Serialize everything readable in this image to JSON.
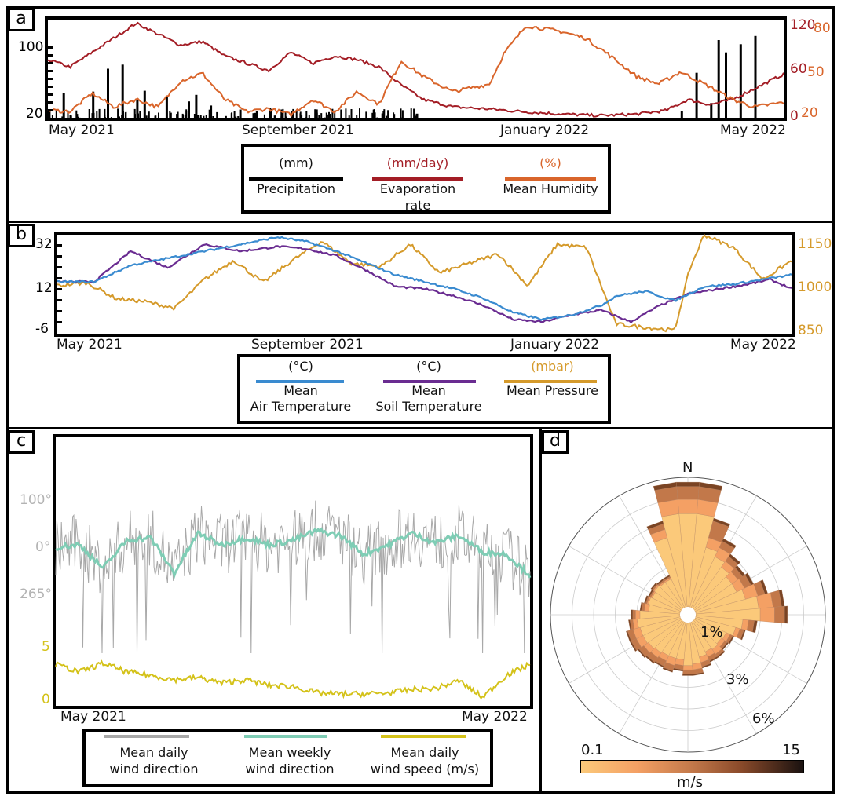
{
  "chart_data": [
    {
      "panel": "a",
      "type": "line",
      "x_ticks": [
        "May 2021",
        "September 2021",
        "January 2022",
        "May 2022"
      ],
      "axes": {
        "left": {
          "ticks": [
            "100",
            "20"
          ],
          "unit": "(mm)",
          "color": "#000000"
        },
        "right_inner": {
          "ticks": [
            "120",
            "60",
            "0"
          ],
          "unit": "(mm/day)",
          "color": "#a31d25"
        },
        "right_outer": {
          "ticks": [
            "80",
            "50",
            "20"
          ],
          "unit": "(%)",
          "color": "#d9652b"
        }
      },
      "series": [
        {
          "name": "Precipitation",
          "unit": "(mm)",
          "color": "#000000",
          "kind": "bar",
          "x": [
            0.02,
            0.06,
            0.08,
            0.1,
            0.12,
            0.13,
            0.16,
            0.19,
            0.2,
            0.22,
            0.26,
            0.3,
            0.33,
            0.44,
            0.5,
            0.86,
            0.88,
            0.9,
            0.91,
            0.92,
            0.94,
            0.96
          ],
          "values": [
            30,
            32,
            60,
            65,
            22,
            33,
            25,
            20,
            28,
            15,
            10,
            12,
            8,
            6,
            5,
            8,
            55,
            18,
            95,
            80,
            90,
            100
          ]
        },
        {
          "name": "Evaporation rate",
          "unit": "(mm/day)",
          "color": "#a31d25",
          "kind": "line",
          "x": [
            0,
            0.03,
            0.06,
            0.09,
            0.12,
            0.15,
            0.18,
            0.21,
            0.24,
            0.27,
            0.3,
            0.33,
            0.36,
            0.39,
            0.42,
            0.45,
            0.48,
            0.51,
            0.55,
            0.6,
            0.65,
            0.7,
            0.75,
            0.8,
            0.84,
            0.87,
            0.9,
            0.93,
            0.96,
            1.0
          ],
          "values": [
            80,
            70,
            90,
            110,
            130,
            115,
            100,
            105,
            85,
            75,
            65,
            90,
            75,
            85,
            80,
            70,
            45,
            25,
            15,
            12,
            8,
            5,
            3,
            5,
            10,
            25,
            18,
            25,
            40,
            60
          ]
        },
        {
          "name": "Mean Humidity",
          "unit": "(%)",
          "color": "#d9652b",
          "kind": "line",
          "x": [
            0,
            0.03,
            0.06,
            0.09,
            0.12,
            0.15,
            0.18,
            0.21,
            0.24,
            0.27,
            0.3,
            0.33,
            0.36,
            0.39,
            0.42,
            0.45,
            0.48,
            0.51,
            0.55,
            0.6,
            0.62,
            0.65,
            0.7,
            0.73,
            0.76,
            0.8,
            0.83,
            0.86,
            0.9,
            0.93,
            0.96,
            1.0
          ],
          "values": [
            23,
            22,
            34,
            25,
            30,
            25,
            42,
            47,
            30,
            22,
            24,
            20,
            30,
            22,
            35,
            27,
            55,
            45,
            35,
            40,
            60,
            78,
            74,
            70,
            60,
            45,
            40,
            48,
            38,
            30,
            25,
            28
          ]
        }
      ],
      "legend_placement": "bottom"
    },
    {
      "panel": "b",
      "type": "line",
      "x_ticks": [
        "May 2021",
        "September 2021",
        "January 2022",
        "May 2022"
      ],
      "axes": {
        "left": {
          "ticks": [
            "32",
            "12",
            "-6"
          ],
          "unit": "(°C)",
          "ylim": [
            -6,
            32
          ]
        },
        "right": {
          "ticks": [
            "1150",
            "1000",
            "850"
          ],
          "unit": "(mbar)",
          "color": "#d59a2b",
          "ylim": [
            850,
            1150
          ]
        }
      },
      "series": [
        {
          "name": "Mean Air Temperature",
          "unit": "(°C)",
          "color": "#3a8bd0",
          "x": [
            0,
            0.05,
            0.1,
            0.15,
            0.2,
            0.25,
            0.3,
            0.34,
            0.38,
            0.42,
            0.46,
            0.5,
            0.54,
            0.58,
            0.62,
            0.66,
            0.7,
            0.74,
            0.76,
            0.8,
            0.84,
            0.88,
            0.92,
            0.96,
            1.0
          ],
          "values": [
            14,
            14,
            21,
            24,
            27,
            30,
            33,
            31,
            27,
            22,
            17,
            14,
            11,
            7,
            1,
            -2,
            0,
            4,
            8,
            10,
            6,
            12,
            13,
            15,
            17
          ]
        },
        {
          "name": "Mean Soil Temperature",
          "unit": "(°C)",
          "color": "#6a2c91",
          "x": [
            0,
            0.05,
            0.1,
            0.15,
            0.2,
            0.25,
            0.3,
            0.34,
            0.38,
            0.42,
            0.46,
            0.5,
            0.54,
            0.58,
            0.62,
            0.66,
            0.7,
            0.74,
            0.78,
            0.82,
            0.86,
            0.9,
            0.94,
            0.97,
            1.0
          ],
          "values": [
            14,
            14,
            27,
            20,
            30,
            27,
            29,
            28,
            25,
            19,
            12,
            11,
            8,
            4,
            -2,
            -3,
            0,
            2,
            -3,
            4,
            9,
            11,
            13,
            15,
            11
          ]
        },
        {
          "name": "Mean Pressure",
          "unit": "(mbar)",
          "color": "#d59a2b",
          "x": [
            0,
            0.04,
            0.08,
            0.12,
            0.16,
            0.2,
            0.24,
            0.28,
            0.32,
            0.36,
            0.4,
            0.44,
            0.48,
            0.52,
            0.56,
            0.6,
            0.64,
            0.68,
            0.72,
            0.76,
            0.8,
            0.84,
            0.86,
            0.88,
            0.92,
            0.96,
            1.0
          ],
          "values": [
            1000,
            1010,
            960,
            950,
            930,
            1020,
            1080,
            1010,
            1080,
            1140,
            1070,
            1060,
            1130,
            1040,
            1070,
            1100,
            1000,
            1130,
            1120,
            880,
            870,
            860,
            1050,
            1160,
            1120,
            1020,
            1080
          ]
        }
      ],
      "legend_placement": "bottom"
    },
    {
      "panel": "c",
      "type": "line",
      "x_ticks": [
        "May 2021",
        "May 2022"
      ],
      "axes": {
        "left_direction": {
          "ticks": [
            "100°",
            "0°",
            "265°"
          ],
          "color": "#b3b3b3"
        },
        "left_speed": {
          "ticks": [
            "5",
            "0"
          ],
          "color": "#d4c21a",
          "ylim": [
            0,
            5
          ]
        }
      },
      "series": [
        {
          "name": "Mean daily wind direction",
          "color": "#a8a8a8",
          "kind": "line",
          "unit": "degrees",
          "note": "high-frequency noise around weekly mean"
        },
        {
          "name": "Mean weekly wind direction",
          "color": "#7fcdb5",
          "x": [
            0,
            0.05,
            0.1,
            0.15,
            0.2,
            0.25,
            0.3,
            0.35,
            0.4,
            0.45,
            0.5,
            0.55,
            0.6,
            0.65,
            0.7,
            0.75,
            0.8,
            0.85,
            0.9,
            0.95,
            1.0
          ],
          "values": [
            0,
            5,
            -45,
            15,
            20,
            -55,
            30,
            5,
            20,
            5,
            15,
            35,
            25,
            -15,
            5,
            30,
            10,
            25,
            -10,
            -15,
            -60
          ]
        },
        {
          "name": "Mean daily wind speed (m/s)",
          "color": "#d4c21a",
          "x": [
            0,
            0.05,
            0.1,
            0.15,
            0.2,
            0.25,
            0.3,
            0.35,
            0.4,
            0.45,
            0.5,
            0.55,
            0.6,
            0.65,
            0.7,
            0.75,
            0.8,
            0.85,
            0.9,
            0.95,
            1.0
          ],
          "values": [
            3.2,
            2.5,
            3.3,
            2.5,
            2.2,
            1.8,
            2.0,
            1.5,
            1.8,
            1.3,
            1.2,
            0.6,
            0.5,
            0.5,
            0.6,
            0.9,
            1.0,
            1.7,
            0.2,
            2.2,
            3.2
          ]
        }
      ],
      "legend_placement": "bottom"
    },
    {
      "panel": "d",
      "type": "wind-rose",
      "title": "N",
      "radial_labels": [
        "1%",
        "3%",
        "6%"
      ],
      "colorbar": {
        "min_label": "0.1",
        "max_label": "15",
        "unit": "m/s",
        "colors": [
          "#fbc97a",
          "#f4a064",
          "#c2784a",
          "#8a4a2a",
          "#1a1210"
        ]
      },
      "sector_count": 36,
      "speed_bins": 4,
      "sectors": [
        {
          "dir": 0,
          "totals": [
            6.5,
            7.5,
            8.4,
            8.7
          ]
        },
        {
          "dir": 10,
          "totals": [
            6.5,
            7.5,
            8.4,
            8.7
          ]
        },
        {
          "dir": 20,
          "totals": [
            4.3,
            5.0,
            6.2,
            6.4
          ]
        },
        {
          "dir": 30,
          "totals": [
            3.9,
            4.6,
            5.1,
            5.3
          ]
        },
        {
          "dir": 40,
          "totals": [
            3.5,
            4.0,
            4.4,
            4.6
          ]
        },
        {
          "dir": 50,
          "totals": [
            3.2,
            3.7,
            4.1,
            4.3
          ]
        },
        {
          "dir": 60,
          "totals": [
            3.2,
            3.8,
            4.3,
            4.5
          ]
        },
        {
          "dir": 70,
          "totals": [
            3.6,
            4.5,
            5.0,
            5.2
          ]
        },
        {
          "dir": 80,
          "totals": [
            4.4,
            5.4,
            6.0,
            6.2
          ]
        },
        {
          "dir": 90,
          "totals": [
            4.5,
            5.5,
            6.2,
            6.4
          ]
        },
        {
          "dir": 100,
          "totals": [
            3.3,
            3.7,
            4.1,
            4.3
          ]
        },
        {
          "dir": 110,
          "totals": [
            2.9,
            3.2,
            3.5,
            3.6
          ]
        },
        {
          "dir": 120,
          "totals": [
            2.4,
            2.7,
            2.9,
            3.0
          ]
        },
        {
          "dir": 130,
          "totals": [
            2.3,
            2.6,
            2.8,
            2.9
          ]
        },
        {
          "dir": 140,
          "totals": [
            2.4,
            2.8,
            3.0,
            3.1
          ]
        },
        {
          "dir": 150,
          "totals": [
            2.3,
            2.7,
            3.0,
            3.1
          ]
        },
        {
          "dir": 160,
          "totals": [
            2.5,
            2.9,
            3.2,
            3.3
          ]
        },
        {
          "dir": 170,
          "totals": [
            2.9,
            3.3,
            3.6,
            3.7
          ]
        },
        {
          "dir": 180,
          "totals": [
            3.0,
            3.3,
            3.6,
            3.7
          ]
        },
        {
          "dir": 190,
          "totals": [
            2.6,
            3.0,
            3.3,
            3.4
          ]
        },
        {
          "dir": 200,
          "totals": [
            2.6,
            3.1,
            3.5,
            3.6
          ]
        },
        {
          "dir": 210,
          "totals": [
            2.6,
            3.0,
            3.4,
            3.5
          ]
        },
        {
          "dir": 220,
          "totals": [
            2.7,
            3.1,
            3.5,
            3.6
          ]
        },
        {
          "dir": 230,
          "totals": [
            2.8,
            3.2,
            3.6,
            3.7
          ]
        },
        {
          "dir": 240,
          "totals": [
            2.9,
            3.4,
            3.8,
            3.9
          ]
        },
        {
          "dir": 250,
          "totals": [
            2.9,
            3.4,
            3.8,
            3.9
          ]
        },
        {
          "dir": 260,
          "totals": [
            3.0,
            3.3,
            3.5,
            3.6
          ]
        },
        {
          "dir": 270,
          "totals": [
            2.8,
            3.1,
            3.3,
            3.4
          ]
        },
        {
          "dir": 280,
          "totals": [
            2.2,
            2.5,
            2.7,
            2.8
          ]
        },
        {
          "dir": 290,
          "totals": [
            2.3,
            2.4,
            2.5,
            2.6
          ]
        },
        {
          "dir": 300,
          "totals": [
            2.2,
            2.3,
            2.4,
            2.5
          ]
        },
        {
          "dir": 310,
          "totals": [
            2.3,
            2.4,
            2.5,
            2.6
          ]
        },
        {
          "dir": 320,
          "totals": [
            2.2,
            2.3,
            2.4,
            2.5
          ]
        },
        {
          "dir": 330,
          "totals": [
            2.2,
            2.3,
            2.4,
            2.5
          ]
        },
        {
          "dir": 340,
          "totals": [
            5.0,
            5.6,
            6.0,
            6.2
          ]
        },
        {
          "dir": 350,
          "totals": [
            6.5,
            7.5,
            8.4,
            8.7
          ]
        }
      ]
    }
  ],
  "panels": {
    "a": {
      "label": "a"
    },
    "b": {
      "label": "b"
    },
    "c": {
      "label": "c"
    },
    "d": {
      "label": "d"
    }
  },
  "legend_a": [
    {
      "unit": "(mm)",
      "name": "Precipitation",
      "color": "#000000"
    },
    {
      "unit": "(mm/day)",
      "name": "Evaporation rate",
      "color": "#a31d25"
    },
    {
      "unit": "(%)",
      "name": "Mean Humidity",
      "color": "#d9652b"
    }
  ],
  "legend_b": [
    {
      "unit": "(°C)",
      "line1": "Mean",
      "line2": "Air Temperature",
      "color": "#3a8bd0"
    },
    {
      "unit": "(°C)",
      "line1": "Mean",
      "line2": "Soil Temperature",
      "color": "#6a2c91"
    },
    {
      "unit": "(mbar)",
      "line1": "Mean Pressure",
      "line2": "",
      "color": "#d59a2b"
    }
  ],
  "legend_c": [
    {
      "line1": "Mean daily",
      "line2": "wind direction",
      "color": "#a8a8a8"
    },
    {
      "line1": "Mean weekly",
      "line2": "wind direction",
      "color": "#7fcdb5"
    },
    {
      "line1": "Mean daily",
      "line2": "wind speed (m/s)",
      "color": "#d4c21a"
    }
  ]
}
